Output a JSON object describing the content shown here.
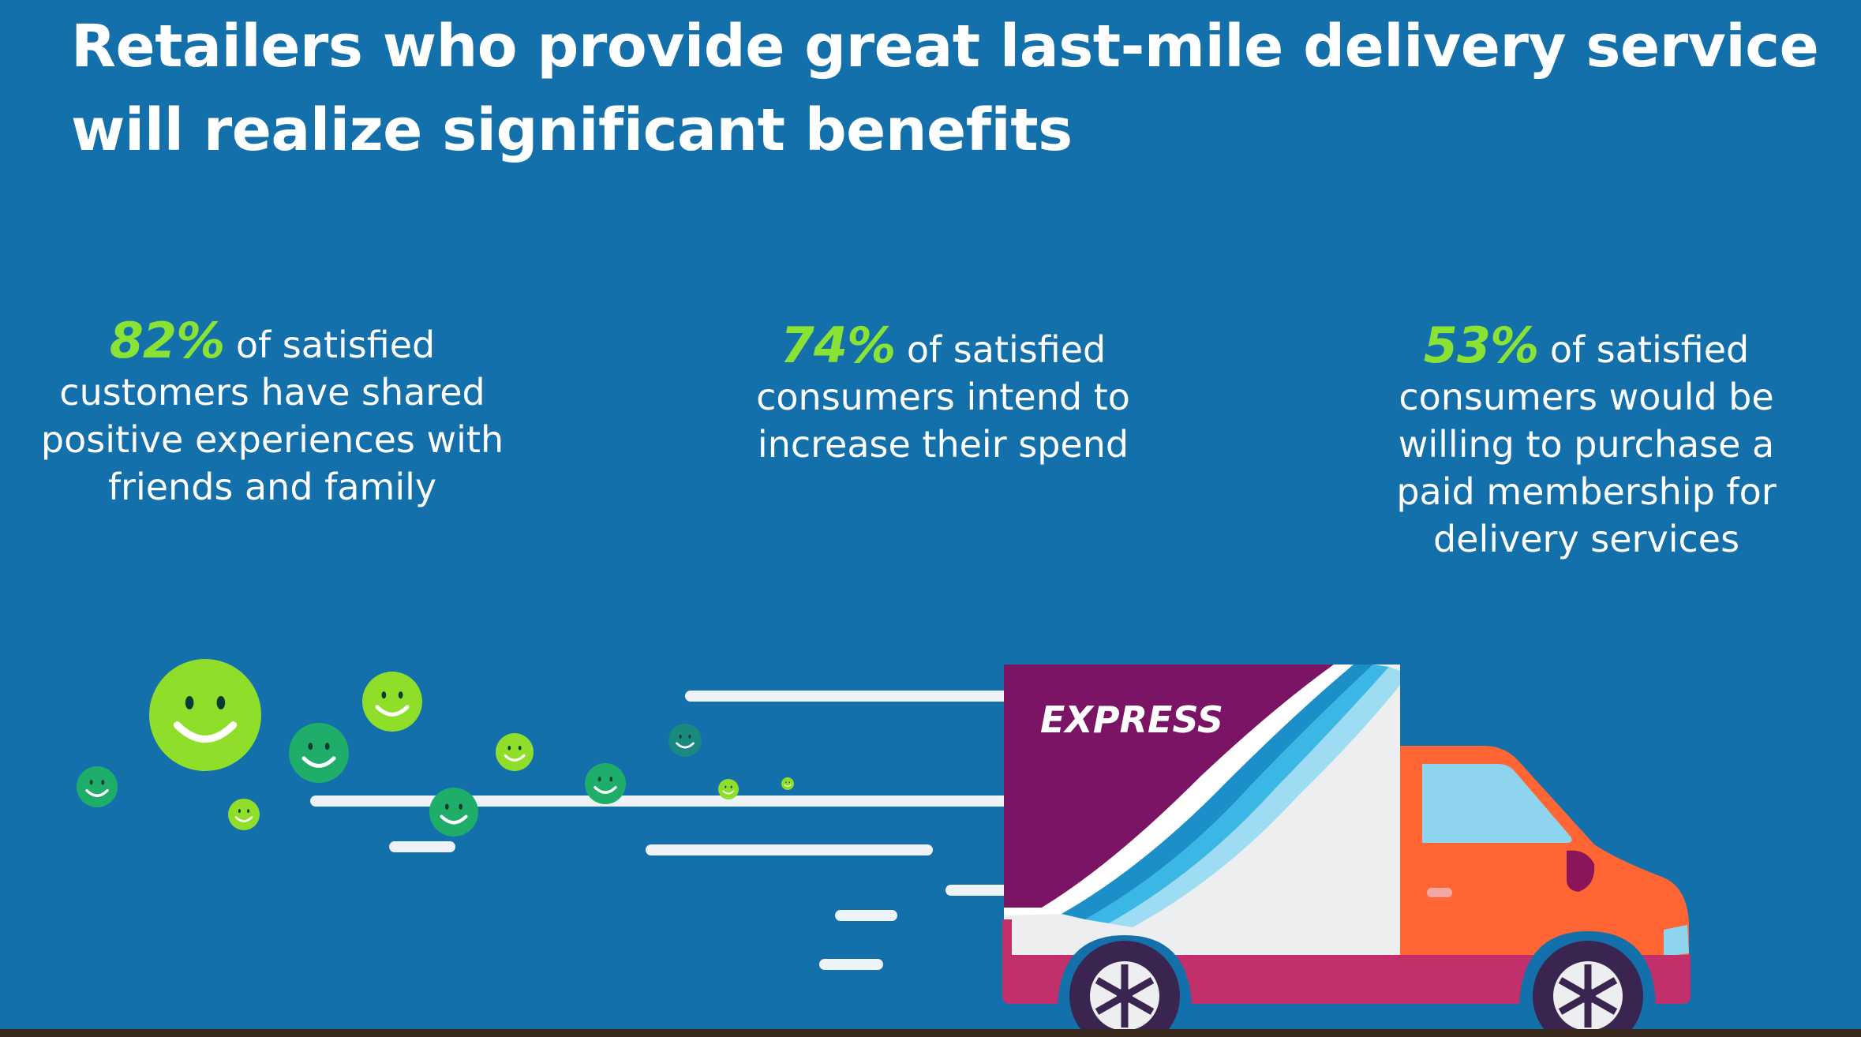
{
  "title": "Retailers who provide great last-mile delivery service will realize significant benefits",
  "stats": [
    {
      "percent": "82%",
      "text": " of satisfied customers have shared positive experiences with friends and family"
    },
    {
      "percent": "74%",
      "text": " of satisfied consumers intend to increase their spend"
    },
    {
      "percent": "53%",
      "text": " of satisfied consumers would be willing to purchase a paid membership for delivery services"
    }
  ],
  "truck": {
    "label": "EXPRESS"
  },
  "colors": {
    "background": "#1370AB",
    "accent_green": "#8AE234",
    "truck_cab": "#FF6633",
    "truck_panel": "#7B1464",
    "truck_trim": "#C2306B"
  },
  "icons": [
    "smiley-icon",
    "delivery-truck-icon",
    "wheel-icon"
  ]
}
